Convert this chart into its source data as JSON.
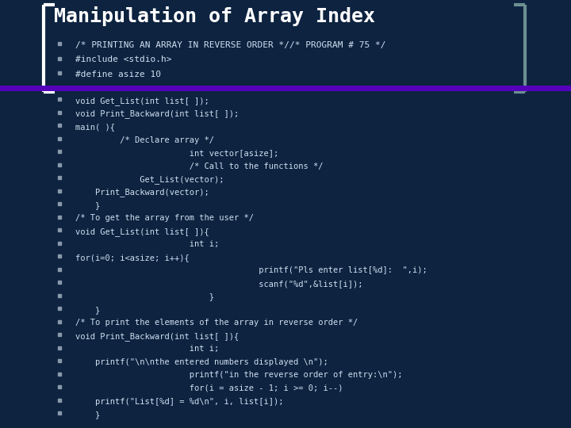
{
  "bg_color": "#0d2340",
  "title": "Manipulation of Array Index",
  "title_color": "#ffffff",
  "title_fontsize": 18,
  "bracket_left_color": "#ffffff",
  "bracket_right_color": "#6b9090",
  "purple_bar_color": "#5500bb",
  "bullet_color": "#8899aa",
  "code_color": "#d0e0f0",
  "header_fontsize": 8.0,
  "code_fontsize": 7.5,
  "header_lines": [
    "/* PRINTING AN ARRAY IN REVERSE ORDER *//* PROGRAM # 75 */",
    "#include <stdio.h>",
    "#define asize 10"
  ],
  "code_lines": [
    "void Get_List(int list[ ]);",
    "void Print_Backward(int list[ ]);",
    "main( ){",
    "         /* Declare array */",
    "                       int vector[asize];",
    "                       /* Call to the functions */",
    "             Get_List(vector);",
    "    Print_Backward(vector);",
    "    }",
    "/* To get the array from the user */",
    "void Get_List(int list[ ]){",
    "                       int i;",
    "for(i=0; i<asize; i++){",
    "                                     printf(\"Pls enter list[%d]:  \",i);",
    "                                     scanf(\"%d\",&list[i]);",
    "                           }",
    "    }",
    "/* To print the elements of the array in reverse order */",
    "void Print_Backward(int list[ ]){",
    "                       int i;",
    "    printf(\"\\n\\nthe entered numbers displayed \\n\");",
    "                       printf(\"in the reverse order of entry:\\n\");",
    "                       for(i = asize - 1; i >= 0; i--)",
    "    printf(\"List[%d] = %d\\n\", i, list[i]);",
    "    }"
  ]
}
